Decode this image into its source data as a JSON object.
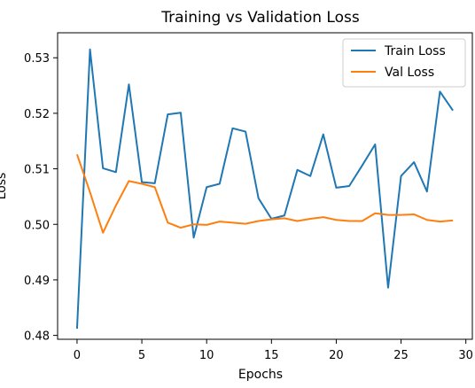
{
  "chart_data": {
    "type": "line",
    "title": "Training vs Validation Loss",
    "xlabel": "Epochs",
    "ylabel": "Loss",
    "xlim": [
      -1.5,
      30.5
    ],
    "ylim": [
      0.4793,
      0.5345
    ],
    "x_ticks": [
      0,
      5,
      10,
      15,
      20,
      25,
      30
    ],
    "y_ticks": [
      0.48,
      0.49,
      0.5,
      0.51,
      0.52,
      0.53
    ],
    "grid": false,
    "legend_position": "upper-right",
    "x": [
      0,
      1,
      2,
      3,
      4,
      5,
      6,
      7,
      8,
      9,
      10,
      11,
      12,
      13,
      14,
      15,
      16,
      17,
      18,
      19,
      20,
      21,
      22,
      23,
      24,
      25,
      26,
      27,
      28,
      29
    ],
    "series": [
      {
        "name": "Train Loss",
        "color": "#1f77b4",
        "values": [
          0.4812,
          0.5315,
          0.5101,
          0.5094,
          0.5252,
          0.5076,
          0.5074,
          0.5198,
          0.5201,
          0.4976,
          0.5067,
          0.5073,
          0.5173,
          0.5167,
          0.5047,
          0.501,
          0.5016,
          0.5098,
          0.5087,
          0.5162,
          0.5066,
          0.5069,
          0.5106,
          0.5144,
          0.4886,
          0.5087,
          0.5112,
          0.5059,
          0.5239,
          0.5205
        ]
      },
      {
        "name": "Val Loss",
        "color": "#ff7f0e",
        "values": [
          0.5126,
          0.5058,
          0.4985,
          0.5034,
          0.5078,
          0.5073,
          0.5067,
          0.5003,
          0.4994,
          0.5,
          0.4999,
          0.5005,
          0.5003,
          0.5001,
          0.5006,
          0.5009,
          0.5011,
          0.5006,
          0.501,
          0.5013,
          0.5008,
          0.5006,
          0.5006,
          0.502,
          0.5017,
          0.5017,
          0.5018,
          0.5008,
          0.5005,
          0.5007
        ]
      }
    ]
  }
}
